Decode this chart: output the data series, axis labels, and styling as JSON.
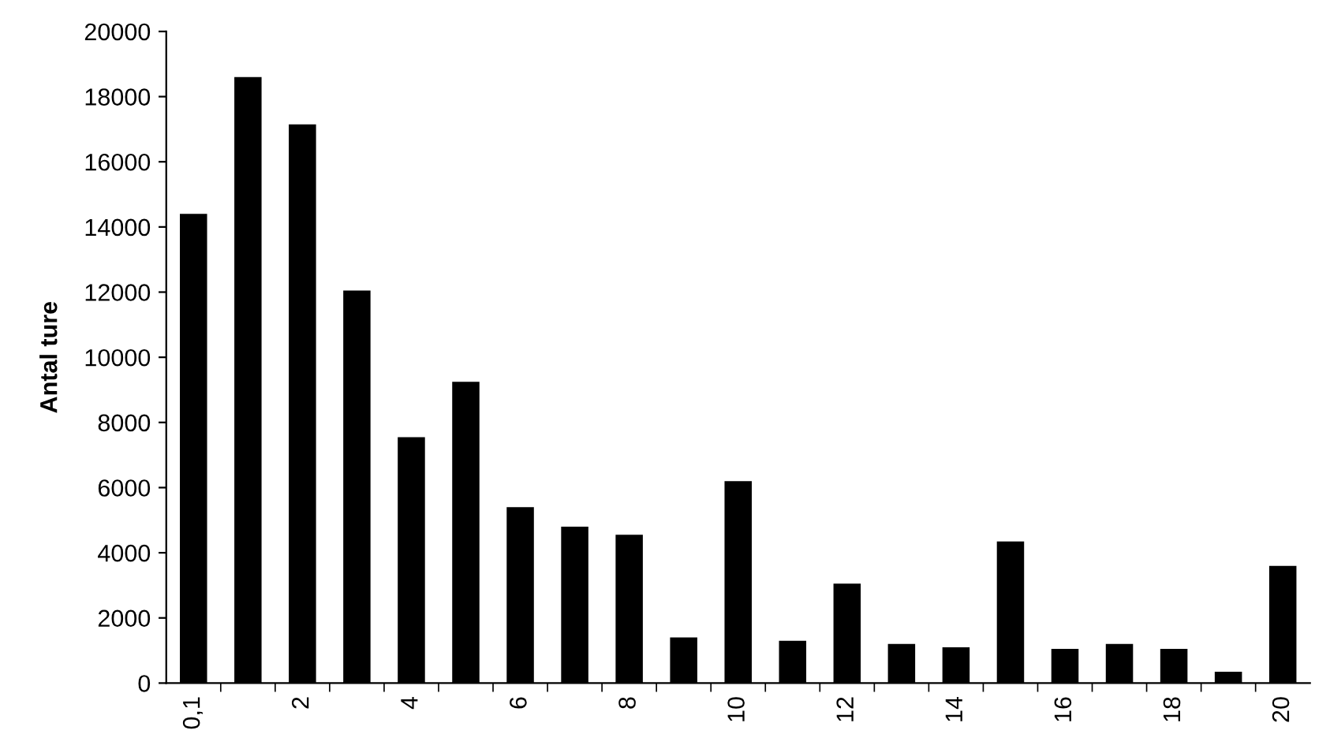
{
  "chart_data": {
    "type": "bar",
    "ylabel": "Antal ture",
    "categories": [
      "0,1",
      null,
      "2",
      null,
      "4",
      null,
      "6",
      null,
      "8",
      null,
      "10",
      null,
      "12",
      null,
      "14",
      null,
      "16",
      null,
      "18",
      null,
      "20"
    ],
    "values": [
      14400,
      18600,
      17150,
      12050,
      7550,
      9250,
      5400,
      4800,
      4550,
      1400,
      6200,
      1300,
      3050,
      1200,
      1100,
      4350,
      1050,
      1200,
      1050,
      350,
      3600
    ],
    "color": "#000000",
    "ylim": [
      0,
      20000
    ],
    "yticks": [
      0,
      2000,
      4000,
      6000,
      8000,
      10000,
      12000,
      14000,
      16000,
      18000,
      20000
    ],
    "grid": false
  }
}
